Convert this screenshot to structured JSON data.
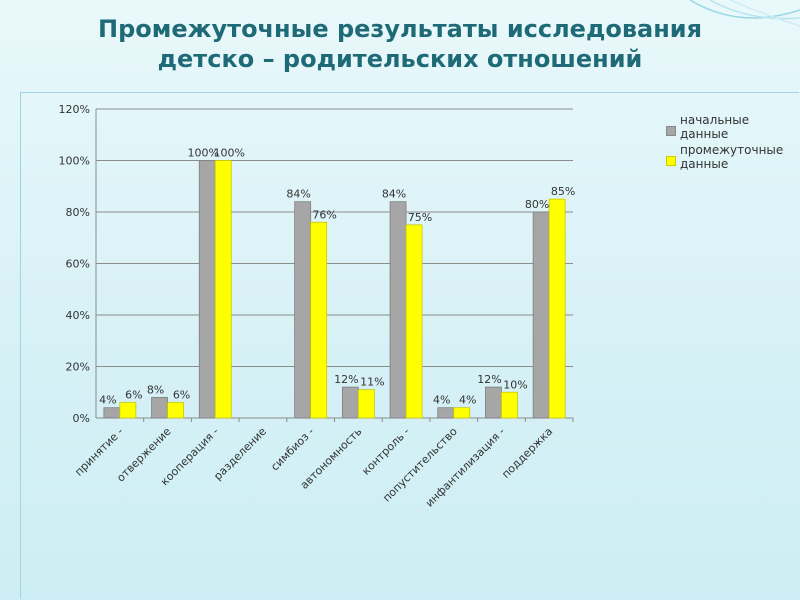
{
  "title": {
    "line1": "Промежуточные результаты исследования",
    "line2": "детско – родительских отношений"
  },
  "colors": {
    "title": "#1f6a77",
    "series_initial": "#a6a6a6",
    "series_intermediate": "#ffff00"
  },
  "chart_data": {
    "type": "bar",
    "ylim": [
      0,
      120
    ],
    "y_ticks": [
      "0%",
      "20%",
      "40%",
      "60%",
      "80%",
      "100%",
      "120%"
    ],
    "grid": true,
    "legend_position": "right",
    "categories": [
      "принятие -",
      "отвержение",
      "кооперация -",
      "разделение",
      "симбиоз -",
      "автономность",
      "контроль -",
      "попустительство",
      "инфантилизация -",
      "поддержка"
    ],
    "series": [
      {
        "name": "начальные данные",
        "values": [
          4,
          8,
          100,
          null,
          84,
          12,
          84,
          4,
          12,
          80
        ],
        "labels": [
          "4%",
          "8%",
          "100%",
          "",
          "84%",
          "12%",
          "84%",
          "4%",
          "12%",
          "80%"
        ]
      },
      {
        "name": "промежуточные данные",
        "values": [
          6,
          6,
          100,
          null,
          76,
          11,
          75,
          4,
          10,
          85
        ],
        "labels": [
          "6%",
          "6%",
          "100%",
          "",
          "76%",
          "11%",
          "75%",
          "4%",
          "10%",
          "85%"
        ]
      }
    ]
  },
  "legend": {
    "initial_label": "начальные данные",
    "intermediate_label": "промежуточные данные"
  }
}
